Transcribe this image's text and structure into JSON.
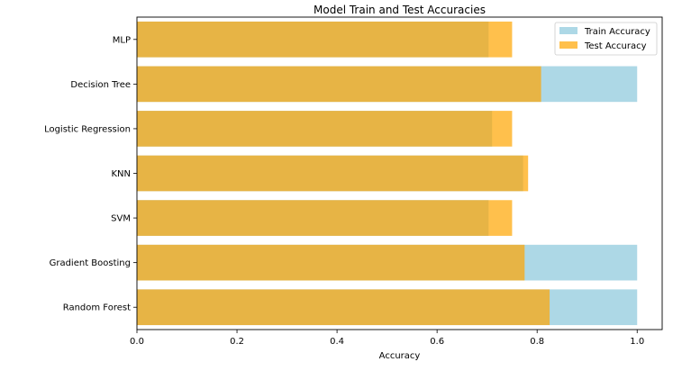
{
  "chart_data": {
    "type": "bar",
    "orientation": "horizontal",
    "title": "Model Train and Test Accuracies",
    "xlabel": "Accuracy",
    "ylabel": "",
    "xlim": [
      0,
      1.05
    ],
    "x_ticks": [
      "0.0",
      "0.2",
      "0.4",
      "0.6",
      "0.8",
      "1.0"
    ],
    "categories": [
      "MLP",
      "Decision Tree",
      "Logistic Regression",
      "KNN",
      "SVM",
      "Gradient Boosting",
      "Random Forest"
    ],
    "series": [
      {
        "name": "Train Accuracy",
        "color": "#add8e6",
        "values": [
          0.703,
          1.0,
          0.71,
          0.772,
          0.703,
          1.0,
          1.0
        ]
      },
      {
        "name": "Test Accuracy",
        "color": "#ffa500",
        "opacity": 0.7,
        "values": [
          0.75,
          0.808,
          0.75,
          0.782,
          0.75,
          0.775,
          0.825
        ]
      }
    ],
    "legend": {
      "placement": "top-right"
    },
    "grid": false
  }
}
